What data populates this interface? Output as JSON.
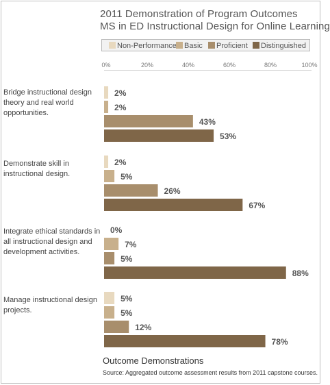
{
  "title_line1": "2011 Demonstration of Program Outcomes",
  "title_line2": "MS in ED Instructional Design for Online Learning",
  "legend": [
    {
      "label": "Non-Performance",
      "color": "#e8d9bf"
    },
    {
      "label": "Basic",
      "color": "#c8b08c"
    },
    {
      "label": "Proficient",
      "color": "#a88e6c"
    },
    {
      "label": "Distinguished",
      "color": "#7f6648"
    }
  ],
  "axis_ticks": [
    "0%",
    "20%",
    "40%",
    "60%",
    "80%",
    "100%"
  ],
  "categories": [
    "Bridge instructional design theory and real world opportunities.",
    "Demonstrate skill in instructional design.",
    "Integrate ethical standards in all instructional design and development activities.",
    "Manage instructional design projects."
  ],
  "footer_title": "Outcome Demonstrations",
  "footer_source": "Source: Aggregated outcome assessment results from 2011 capstone courses.",
  "chart_data": {
    "type": "bar",
    "orientation": "horizontal",
    "title": "2011 Demonstration of Program Outcomes MS in ED Instructional Design for Online Learning",
    "xlabel": "Outcome Demonstrations",
    "xlim": [
      0,
      100
    ],
    "legend_position": "top",
    "categories": [
      "Bridge instructional design theory and real world opportunities.",
      "Demonstrate skill in instructional design.",
      "Integrate ethical standards in all instructional design and development activities.",
      "Manage instructional design projects."
    ],
    "series": [
      {
        "name": "Non-Performance",
        "values": [
          2,
          2,
          0,
          5
        ],
        "labels": [
          "2%",
          "2%",
          "0%",
          "5%"
        ]
      },
      {
        "name": "Basic",
        "values": [
          2,
          5,
          7,
          5
        ],
        "labels": [
          "2%",
          "5%",
          "7%",
          "5%"
        ]
      },
      {
        "name": "Proficient",
        "values": [
          43,
          26,
          5,
          12
        ],
        "labels": [
          "43%",
          "26%",
          "5%",
          "12%"
        ]
      },
      {
        "name": "Distinguished",
        "values": [
          53,
          67,
          88,
          78
        ],
        "labels": [
          "53%",
          "67%",
          "88%",
          "78%"
        ]
      }
    ]
  }
}
